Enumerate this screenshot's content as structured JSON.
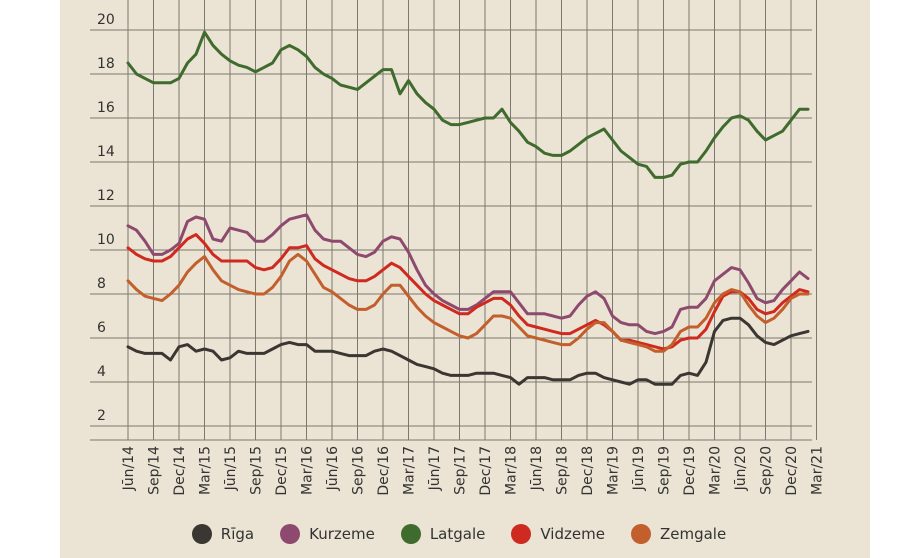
{
  "chart_data": {
    "type": "line",
    "title": "",
    "xlabel": "",
    "ylabel": "",
    "ylim": [
      2,
      21
    ],
    "yticks": [
      2,
      4,
      6,
      8,
      10,
      12,
      14,
      16,
      18,
      20
    ],
    "grid": true,
    "legend_position": "bottom",
    "x_tick_labels": [
      "Jūn/14",
      "Sep/14",
      "Dec/14",
      "Mar/15",
      "Jūn/15",
      "Sep/15",
      "Dec/15",
      "Mar/16",
      "Jūn/16",
      "Sep/16",
      "Dec/16",
      "Mar/17",
      "Jūn/17",
      "Sep/17",
      "Dec/17",
      "Mar/18",
      "Jūn/18",
      "Sep/18",
      "Dec/18",
      "Mar/19",
      "Jūn/19",
      "Sep/19",
      "Dec/19",
      "Mar/20",
      "Jūn/20",
      "Sep/20",
      "Dec/20",
      "Mar/21"
    ],
    "series": [
      {
        "name": "Rīga",
        "color": "#3a3632",
        "values": [
          5.6,
          5.4,
          5.3,
          5.3,
          5.3,
          5.0,
          5.6,
          5.7,
          5.4,
          5.5,
          5.4,
          5.0,
          5.1,
          5.4,
          5.3,
          5.3,
          5.3,
          5.5,
          5.7,
          5.8,
          5.7,
          5.7,
          5.4,
          5.4,
          5.4,
          5.3,
          5.2,
          5.2,
          5.2,
          5.4,
          5.5,
          5.4,
          5.2,
          5.0,
          4.8,
          4.7,
          4.6,
          4.4,
          4.3,
          4.3,
          4.3,
          4.4,
          4.4,
          4.4,
          4.3,
          4.2,
          3.9,
          4.2,
          4.2,
          4.2,
          4.1,
          4.1,
          4.1,
          4.3,
          4.4,
          4.4,
          4.2,
          4.1,
          4.0,
          3.9,
          4.1,
          4.1,
          3.9,
          3.9,
          3.9,
          4.3,
          4.4,
          4.3,
          4.9,
          6.3,
          6.8,
          6.9,
          6.9,
          6.6,
          6.1,
          5.8,
          5.7,
          5.9,
          6.1,
          6.2,
          6.3
        ]
      },
      {
        "name": "Kurzeme",
        "color": "#8e4a6e",
        "values": [
          11.1,
          10.9,
          10.4,
          9.8,
          9.8,
          10.0,
          10.3,
          11.3,
          11.5,
          11.4,
          10.5,
          10.4,
          11.0,
          10.9,
          10.8,
          10.4,
          10.4,
          10.7,
          11.1,
          11.4,
          11.5,
          11.6,
          10.9,
          10.5,
          10.4,
          10.4,
          10.1,
          9.8,
          9.7,
          9.9,
          10.4,
          10.6,
          10.5,
          9.9,
          9.1,
          8.4,
          8.0,
          7.7,
          7.5,
          7.3,
          7.3,
          7.5,
          7.8,
          8.1,
          8.1,
          8.1,
          7.6,
          7.1,
          7.1,
          7.1,
          7.0,
          6.9,
          7.0,
          7.5,
          7.9,
          8.1,
          7.8,
          7.0,
          6.7,
          6.6,
          6.6,
          6.3,
          6.2,
          6.3,
          6.5,
          7.3,
          7.4,
          7.4,
          7.8,
          8.6,
          8.9,
          9.2,
          9.1,
          8.5,
          7.8,
          7.6,
          7.7,
          8.2,
          8.6,
          9.0,
          8.7
        ]
      },
      {
        "name": "Latgale",
        "color": "#3f6b2e",
        "values": [
          18.5,
          18.0,
          17.8,
          17.6,
          17.6,
          17.6,
          17.8,
          18.5,
          18.9,
          19.9,
          19.3,
          18.9,
          18.6,
          18.4,
          18.3,
          18.1,
          18.3,
          18.5,
          19.1,
          19.3,
          19.1,
          18.8,
          18.3,
          18.0,
          17.8,
          17.5,
          17.4,
          17.3,
          17.6,
          17.9,
          18.2,
          18.2,
          17.1,
          17.7,
          17.1,
          16.7,
          16.4,
          15.9,
          15.7,
          15.7,
          15.8,
          15.9,
          16.0,
          16.0,
          16.4,
          15.8,
          15.4,
          14.9,
          14.7,
          14.4,
          14.3,
          14.3,
          14.5,
          14.8,
          15.1,
          15.3,
          15.5,
          15.0,
          14.5,
          14.2,
          13.9,
          13.8,
          13.3,
          13.3,
          13.4,
          13.9,
          14.0,
          14.0,
          14.5,
          15.1,
          15.6,
          16.0,
          16.1,
          15.9,
          15.4,
          15.0,
          15.2,
          15.4,
          15.9,
          16.4,
          16.4
        ]
      },
      {
        "name": "Vidzeme",
        "color": "#cf2a1f",
        "values": [
          10.1,
          9.8,
          9.6,
          9.5,
          9.5,
          9.7,
          10.1,
          10.5,
          10.7,
          10.3,
          9.8,
          9.5,
          9.5,
          9.5,
          9.5,
          9.2,
          9.1,
          9.2,
          9.6,
          10.1,
          10.1,
          10.2,
          9.6,
          9.3,
          9.1,
          8.9,
          8.7,
          8.6,
          8.6,
          8.8,
          9.1,
          9.4,
          9.2,
          8.8,
          8.4,
          8.0,
          7.7,
          7.5,
          7.3,
          7.1,
          7.1,
          7.4,
          7.6,
          7.8,
          7.8,
          7.5,
          7.0,
          6.6,
          6.5,
          6.4,
          6.3,
          6.2,
          6.2,
          6.4,
          6.6,
          6.8,
          6.6,
          6.3,
          5.9,
          5.9,
          5.8,
          5.7,
          5.6,
          5.5,
          5.6,
          5.9,
          6.0,
          6.0,
          6.4,
          7.2,
          7.9,
          8.1,
          8.1,
          7.8,
          7.3,
          7.1,
          7.2,
          7.6,
          7.9,
          8.2,
          8.1
        ]
      },
      {
        "name": "Zemgale",
        "color": "#c25f2c",
        "values": [
          8.6,
          8.2,
          7.9,
          7.8,
          7.7,
          8.0,
          8.4,
          9.0,
          9.4,
          9.7,
          9.1,
          8.6,
          8.4,
          8.2,
          8.1,
          8.0,
          8.0,
          8.3,
          8.8,
          9.5,
          9.8,
          9.5,
          8.9,
          8.3,
          8.1,
          7.8,
          7.5,
          7.3,
          7.3,
          7.5,
          8.0,
          8.4,
          8.4,
          7.9,
          7.4,
          7.0,
          6.7,
          6.5,
          6.3,
          6.1,
          6.0,
          6.2,
          6.6,
          7.0,
          7.0,
          6.9,
          6.5,
          6.1,
          6.0,
          5.9,
          5.8,
          5.7,
          5.7,
          6.0,
          6.4,
          6.7,
          6.7,
          6.3,
          5.9,
          5.8,
          5.7,
          5.6,
          5.4,
          5.4,
          5.7,
          6.3,
          6.5,
          6.5,
          6.9,
          7.6,
          8.0,
          8.2,
          8.1,
          7.5,
          7.0,
          6.7,
          6.9,
          7.3,
          7.8,
          8.0,
          8.0
        ]
      }
    ]
  }
}
